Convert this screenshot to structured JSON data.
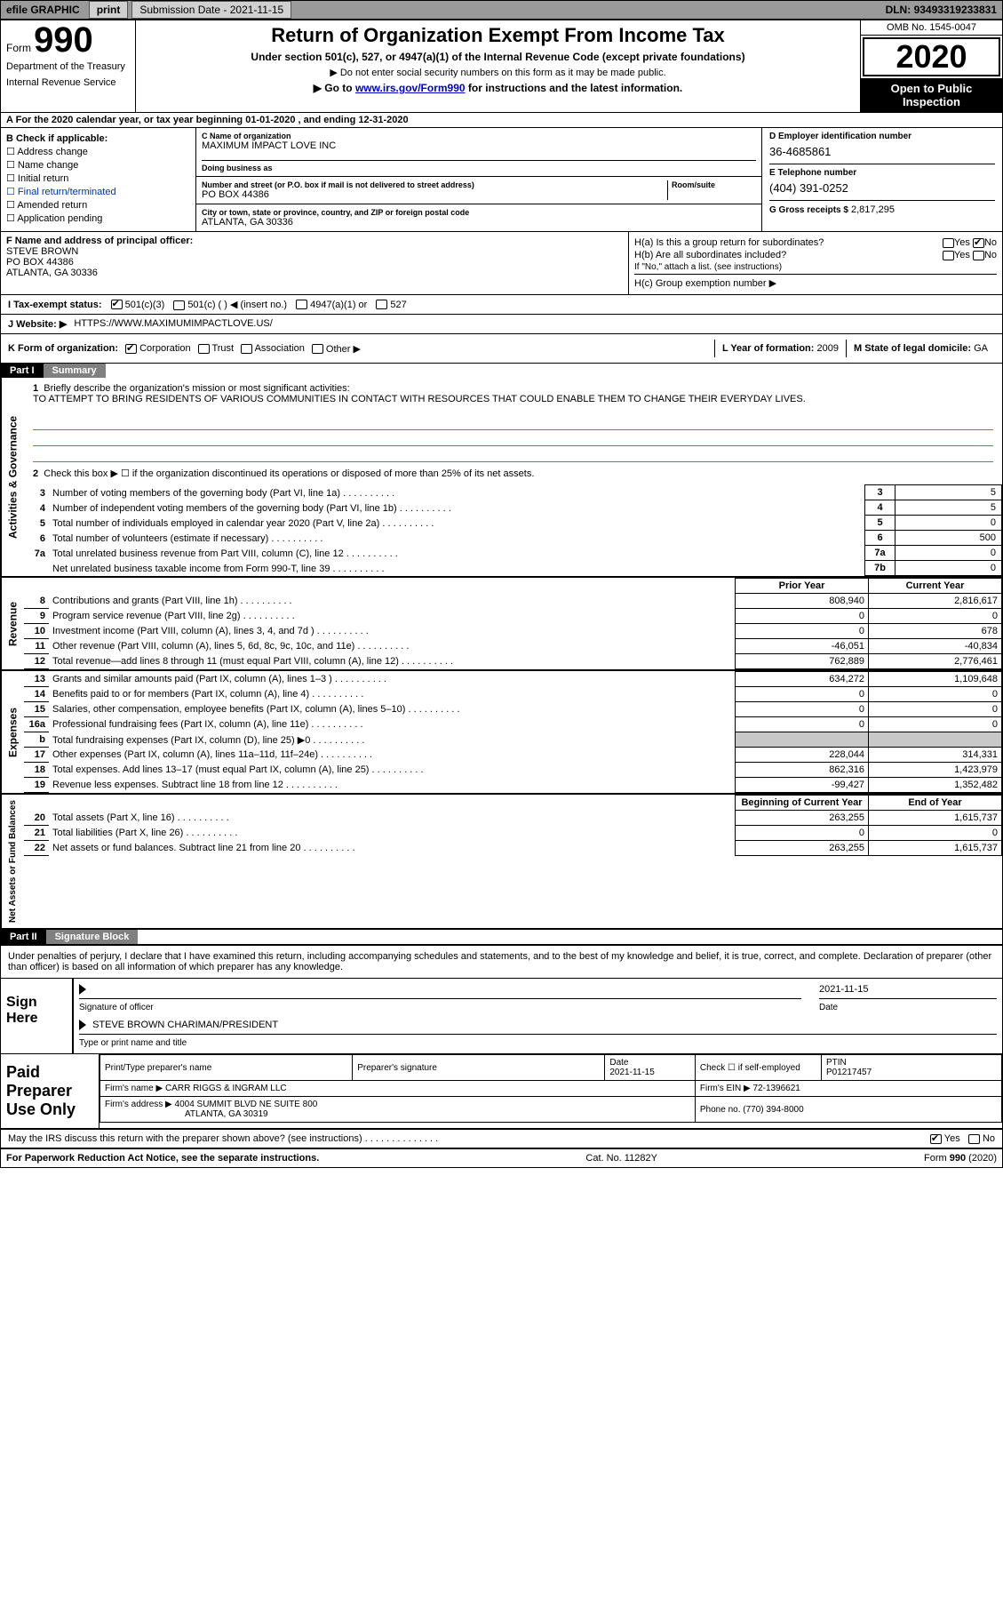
{
  "topbar": {
    "efile_label": "efile GRAPHIC",
    "print_btn": "print",
    "submission_date_label": "Submission Date - ",
    "submission_date": "2021-11-15",
    "dln_label": "DLN: ",
    "dln": "93493319233831"
  },
  "header": {
    "form_word": "Form",
    "form_number": "990",
    "dept1": "Department of the Treasury",
    "dept2": "Internal Revenue Service",
    "title": "Return of Organization Exempt From Income Tax",
    "subtitle1": "Under section 501(c), 527, or 4947(a)(1) of the Internal Revenue Code (except private foundations)",
    "subtitle2": "▶ Do not enter social security numbers on this form as it may be made public.",
    "subtitle3_pre": "▶ Go to ",
    "subtitle3_link": "www.irs.gov/Form990",
    "subtitle3_post": " for instructions and the latest information.",
    "omb": "OMB No. 1545-0047",
    "year": "2020",
    "otp": "Open to Public Inspection"
  },
  "line_a": "For the 2020 calendar year, or tax year beginning 01-01-2020    , and ending 12-31-2020",
  "box_b": {
    "title": "B Check if applicable:",
    "items": [
      "Address change",
      "Name change",
      "Initial return",
      "Final return/terminated",
      "Amended return",
      "Application pending"
    ]
  },
  "box_c": {
    "label": "C Name of organization",
    "name": "MAXIMUM IMPACT LOVE INC",
    "dba_label": "Doing business as",
    "addr_label": "Number and street (or P.O. box if mail is not delivered to street address)",
    "room_label": "Room/suite",
    "addr": "PO BOX 44386",
    "city_label": "City or town, state or province, country, and ZIP or foreign postal code",
    "city": "ATLANTA, GA   30336"
  },
  "box_d": {
    "label": "D Employer identification number",
    "value": "36-4685861"
  },
  "box_e": {
    "label": "E Telephone number",
    "value": "(404) 391-0252"
  },
  "box_g": {
    "label": "G Gross receipts $",
    "value": "2,817,295"
  },
  "box_f": {
    "label": "F  Name and address of principal officer:",
    "l1": "STEVE BROWN",
    "l2": "PO BOX 44386",
    "l3": "ATLANTA, GA   30336"
  },
  "box_h": {
    "ha_label": "H(a)  Is this a group return for subordinates?",
    "hb_label": "H(b)  Are all subordinates included?",
    "hb_note": "If \"No,\" attach a list. (see instructions)",
    "hc_label": "H(c)  Group exemption number ▶",
    "yes": "Yes",
    "no": "No"
  },
  "line_i": {
    "label": "I    Tax-exempt status:",
    "o1": "501(c)(3)",
    "o2": "501(c) (   ) ◀ (insert no.)",
    "o3": "4947(a)(1) or",
    "o4": "527"
  },
  "line_j": {
    "label": "J   Website: ▶",
    "value": "HTTPS://WWW.MAXIMUMIMPACTLOVE.US/"
  },
  "line_k": {
    "label": "K Form of organization:",
    "o1": "Corporation",
    "o2": "Trust",
    "o3": "Association",
    "o4": "Other ▶"
  },
  "line_l": {
    "label": "L Year of formation:",
    "value": "2009"
  },
  "line_m": {
    "label": "M State of legal domicile:",
    "value": "GA"
  },
  "part1": {
    "num": "Part I",
    "title": "Summary"
  },
  "mission": {
    "q": "Briefly describe the organization's mission or most significant activities:",
    "text": "TO ATTEMPT TO BRING RESIDENTS OF VARIOUS COMMUNITIES IN CONTACT WITH RESOURCES THAT COULD ENABLE THEM TO CHANGE THEIR EVERYDAY LIVES."
  },
  "line2": "Check this box ▶ ☐  if the organization discontinued its operations or disposed of more than 25% of its net assets.",
  "gov_rows": [
    {
      "n": "3",
      "d": "Number of voting members of the governing body (Part VI, line 1a)",
      "box": "3",
      "v": "5"
    },
    {
      "n": "4",
      "d": "Number of independent voting members of the governing body (Part VI, line 1b)",
      "box": "4",
      "v": "5"
    },
    {
      "n": "5",
      "d": "Total number of individuals employed in calendar year 2020 (Part V, line 2a)",
      "box": "5",
      "v": "0"
    },
    {
      "n": "6",
      "d": "Total number of volunteers (estimate if necessary)",
      "box": "6",
      "v": "500"
    },
    {
      "n": "7a",
      "d": "Total unrelated business revenue from Part VIII, column (C), line 12",
      "box": "7a",
      "v": "0"
    },
    {
      "n": "",
      "d": "Net unrelated business taxable income from Form 990-T, line 39",
      "box": "7b",
      "v": "0"
    }
  ],
  "col_headers": {
    "py": "Prior Year",
    "cy": "Current Year"
  },
  "revenue_rows": [
    {
      "n": "8",
      "d": "Contributions and grants (Part VIII, line 1h)",
      "py": "808,940",
      "cy": "2,816,617"
    },
    {
      "n": "9",
      "d": "Program service revenue (Part VIII, line 2g)",
      "py": "0",
      "cy": "0"
    },
    {
      "n": "10",
      "d": "Investment income (Part VIII, column (A), lines 3, 4, and 7d )",
      "py": "0",
      "cy": "678"
    },
    {
      "n": "11",
      "d": "Other revenue (Part VIII, column (A), lines 5, 6d, 8c, 9c, 10c, and 11e)",
      "py": "-46,051",
      "cy": "-40,834"
    },
    {
      "n": "12",
      "d": "Total revenue—add lines 8 through 11 (must equal Part VIII, column (A), line 12)",
      "py": "762,889",
      "cy": "2,776,461"
    }
  ],
  "expense_rows": [
    {
      "n": "13",
      "d": "Grants and similar amounts paid (Part IX, column (A), lines 1–3 )",
      "py": "634,272",
      "cy": "1,109,648"
    },
    {
      "n": "14",
      "d": "Benefits paid to or for members (Part IX, column (A), line 4)",
      "py": "0",
      "cy": "0"
    },
    {
      "n": "15",
      "d": "Salaries, other compensation, employee benefits (Part IX, column (A), lines 5–10)",
      "py": "0",
      "cy": "0"
    },
    {
      "n": "16a",
      "d": "Professional fundraising fees (Part IX, column (A), line 11e)",
      "py": "0",
      "cy": "0"
    },
    {
      "n": "b",
      "d": "Total fundraising expenses (Part IX, column (D), line 25) ▶0",
      "py": "",
      "cy": "",
      "shade": true
    },
    {
      "n": "17",
      "d": "Other expenses (Part IX, column (A), lines 11a–11d, 11f–24e)",
      "py": "228,044",
      "cy": "314,331"
    },
    {
      "n": "18",
      "d": "Total expenses. Add lines 13–17 (must equal Part IX, column (A), line 25)",
      "py": "862,316",
      "cy": "1,423,979"
    },
    {
      "n": "19",
      "d": "Revenue less expenses. Subtract line 18 from line 12",
      "py": "-99,427",
      "cy": "1,352,482"
    }
  ],
  "na_headers": {
    "py": "Beginning of Current Year",
    "cy": "End of Year"
  },
  "na_rows": [
    {
      "n": "20",
      "d": "Total assets (Part X, line 16)",
      "py": "263,255",
      "cy": "1,615,737"
    },
    {
      "n": "21",
      "d": "Total liabilities (Part X, line 26)",
      "py": "0",
      "cy": "0"
    },
    {
      "n": "22",
      "d": "Net assets or fund balances. Subtract line 21 from line 20",
      "py": "263,255",
      "cy": "1,615,737"
    }
  ],
  "part2": {
    "num": "Part II",
    "title": "Signature Block"
  },
  "penalty": "Under penalties of perjury, I declare that I have examined this return, including accompanying schedules and statements, and to the best of my knowledge and belief, it is true, correct, and complete. Declaration of preparer (other than officer) is based on all information of which preparer has any knowledge.",
  "sign": {
    "here": "Sign Here",
    "sig_label": "Signature of officer",
    "date_label": "Date",
    "date": "2021-11-15",
    "name": "STEVE BROWN  CHARIMAN/PRESIDENT",
    "name_label": "Type or print name and title"
  },
  "prep": {
    "title": "Paid Preparer Use Only",
    "h1": "Print/Type preparer's name",
    "h2": "Preparer's signature",
    "h3": "Date",
    "h3v": "2021-11-15",
    "h4": "Check ☐ if self-employed",
    "h5": "PTIN",
    "h5v": "P01217457",
    "firm_name_l": "Firm's name    ▶",
    "firm_name": "CARR RIGGS & INGRAM LLC",
    "firm_ein_l": "Firm's EIN ▶",
    "firm_ein": "72-1396621",
    "firm_addr_l": "Firm's address ▶",
    "firm_addr1": "4004 SUMMIT BLVD NE SUITE 800",
    "firm_addr2": "ATLANTA, GA   30319",
    "phone_l": "Phone no.",
    "phone": "(770) 394-8000"
  },
  "discuss": {
    "q": "May the IRS discuss this return with the preparer shown above? (see instructions)",
    "yes": "Yes",
    "no": "No"
  },
  "footer": {
    "l": "For Paperwork Reduction Act Notice, see the separate instructions.",
    "m": "Cat. No. 11282Y",
    "r": "Form 990 (2020)"
  },
  "side_labels": {
    "gov": "Activities & Governance",
    "rev": "Revenue",
    "exp": "Expenses",
    "na": "Net Assets or Fund Balances"
  },
  "colors": {
    "topbar_bg": "#9a9a9a",
    "btn_bg": "#d0d0d0",
    "black": "#000000",
    "link": "#0000cc",
    "underline": "#5a7ab5",
    "shade": "#c8c8c8",
    "parthdr_gray": "#808080"
  }
}
